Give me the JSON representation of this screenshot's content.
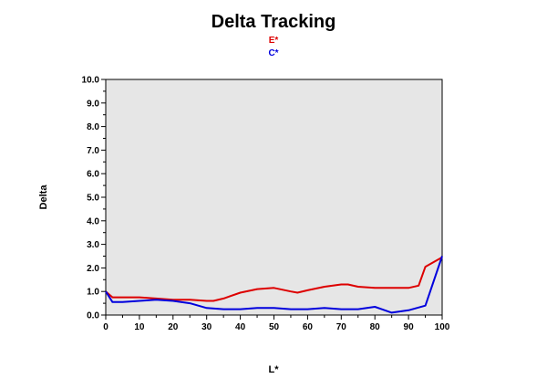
{
  "chart_data": {
    "type": "line",
    "title": "Delta Tracking",
    "xlabel": "L*",
    "ylabel": "Delta",
    "xlim": [
      0,
      100
    ],
    "ylim": [
      0,
      10
    ],
    "x_ticks": [
      "0",
      "10",
      "20",
      "30",
      "40",
      "50",
      "60",
      "70",
      "80",
      "90",
      "100"
    ],
    "y_ticks": [
      "0.0",
      "1.0",
      "2.0",
      "3.0",
      "4.0",
      "5.0",
      "6.0",
      "7.0",
      "8.0",
      "9.0",
      "10.0"
    ],
    "grid": false,
    "legend_position": "top-center",
    "plot_background": "#e6e6e6",
    "series": [
      {
        "name": "E*",
        "color": "#dd0000",
        "x": [
          0,
          2,
          5,
          10,
          15,
          20,
          25,
          30,
          32,
          35,
          40,
          45,
          50,
          55,
          57,
          60,
          65,
          70,
          72,
          75,
          80,
          85,
          90,
          93,
          95,
          100
        ],
        "y": [
          1.0,
          0.75,
          0.75,
          0.75,
          0.7,
          0.65,
          0.65,
          0.6,
          0.6,
          0.7,
          0.95,
          1.1,
          1.15,
          1.0,
          0.95,
          1.05,
          1.2,
          1.3,
          1.3,
          1.2,
          1.15,
          1.15,
          1.15,
          1.25,
          2.05,
          2.45
        ]
      },
      {
        "name": "C*",
        "color": "#0000dd",
        "x": [
          0,
          2,
          5,
          10,
          15,
          20,
          25,
          30,
          35,
          40,
          45,
          50,
          55,
          60,
          65,
          70,
          75,
          80,
          82,
          85,
          90,
          95,
          100
        ],
        "y": [
          1.0,
          0.55,
          0.55,
          0.6,
          0.65,
          0.6,
          0.5,
          0.3,
          0.25,
          0.25,
          0.3,
          0.3,
          0.25,
          0.25,
          0.3,
          0.25,
          0.25,
          0.35,
          0.25,
          0.1,
          0.2,
          0.4,
          2.5
        ]
      }
    ]
  }
}
